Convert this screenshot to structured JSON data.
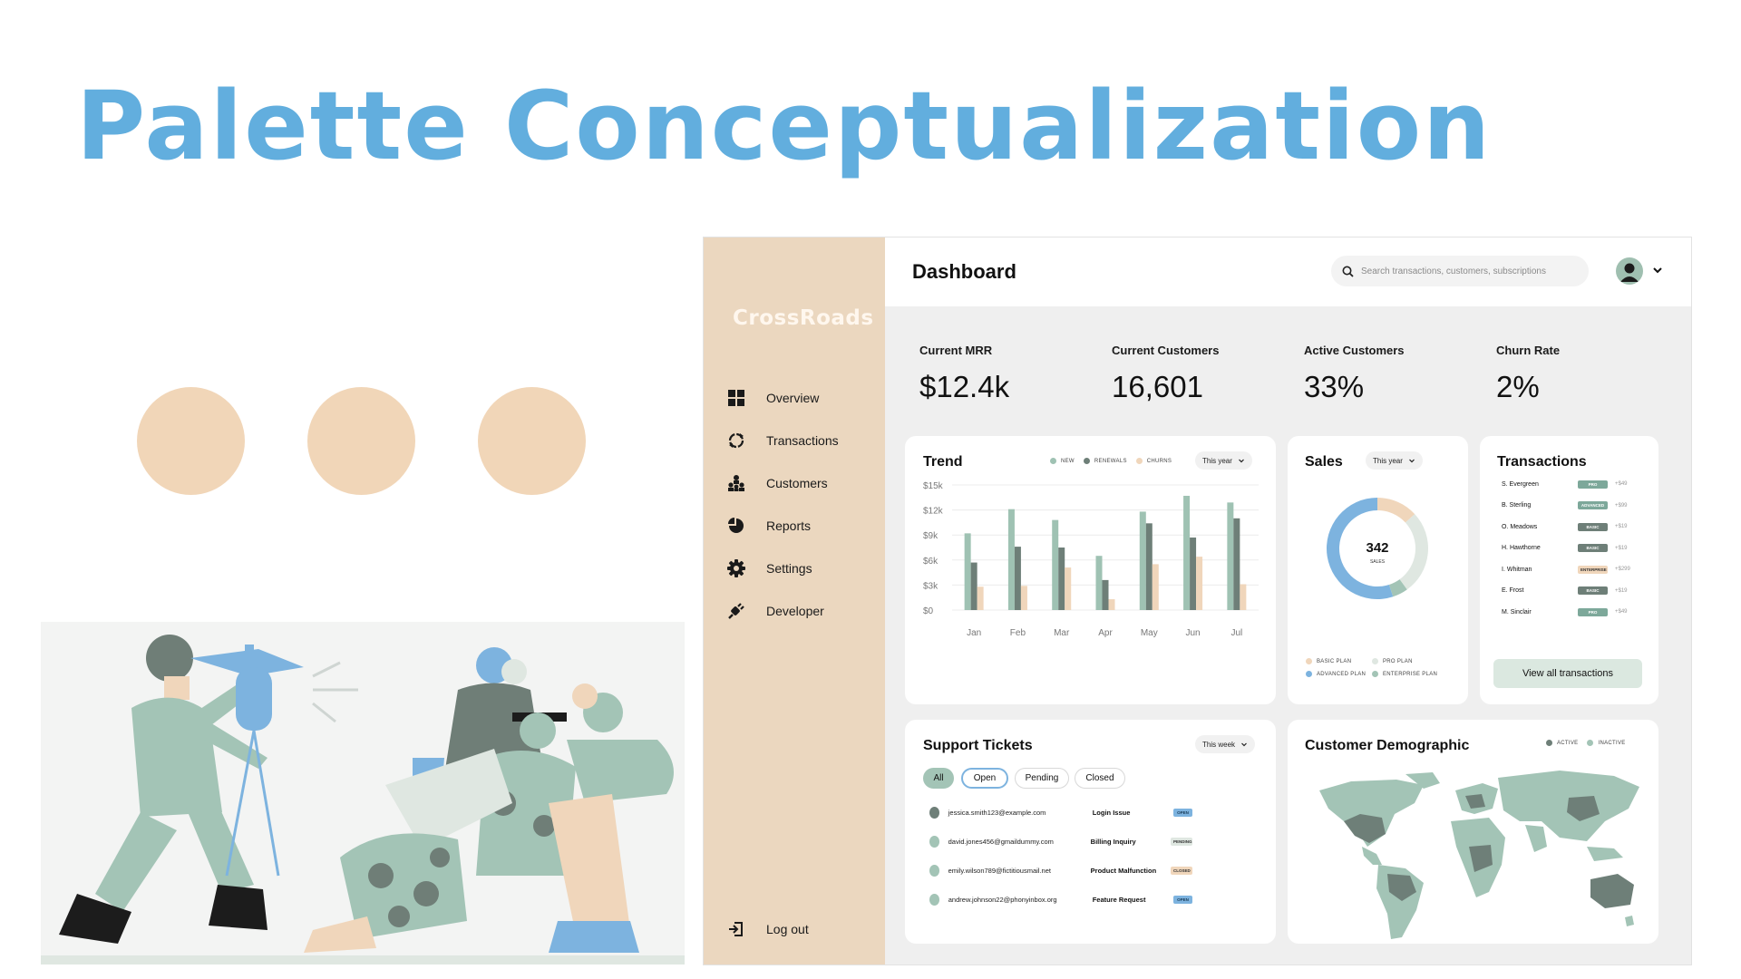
{
  "slide": {
    "title": "Palette Conceptualization",
    "palette_circle_color": "#f1d6b8"
  },
  "sidebar": {
    "logo": "CrossRoads",
    "items": [
      {
        "label": "Overview",
        "icon": "grid-icon"
      },
      {
        "label": "Transactions",
        "icon": "refresh-cycle-icon"
      },
      {
        "label": "Customers",
        "icon": "people-hierarchy-icon"
      },
      {
        "label": "Reports",
        "icon": "pie-icon"
      },
      {
        "label": "Settings",
        "icon": "gear-icon"
      },
      {
        "label": "Developer",
        "icon": "plug-icon"
      }
    ],
    "logout": {
      "label": "Log out",
      "icon": "logout-icon"
    }
  },
  "header": {
    "title": "Dashboard",
    "search_placeholder": "Search transactions, customers, subscriptions"
  },
  "stats": [
    {
      "label": "Current MRR",
      "value": "$12.4k",
      "color": "#e0e8e2"
    },
    {
      "label": "Current Customers",
      "value": "16,601",
      "color": "#7db3df"
    },
    {
      "label": "Active Customers",
      "value": "33%",
      "color": "#a1c3b5"
    },
    {
      "label": "Churn Rate",
      "value": "2%",
      "color": "#798881"
    }
  ],
  "trend": {
    "title": "Trend",
    "period": "This year",
    "legend": [
      "NEW",
      "RENEWALS",
      "CHURNS"
    ]
  },
  "sales": {
    "title": "Sales",
    "period": "This year",
    "center_value": "342",
    "center_label": "SALES",
    "legend": [
      "BASIC PLAN",
      "PRO PLAN",
      "ADVANCED PLAN",
      "ENTERPRISE PLAN"
    ]
  },
  "transactions": {
    "title": "Transactions",
    "rows": [
      {
        "name": "S. Evergreen",
        "plan": "PRO",
        "amount": "+$49"
      },
      {
        "name": "B. Sterling",
        "plan": "ADVANCED",
        "amount": "+$99"
      },
      {
        "name": "O. Meadows",
        "plan": "BASIC",
        "amount": "+$19"
      },
      {
        "name": "H. Hawthorne",
        "plan": "BASIC",
        "amount": "+$19"
      },
      {
        "name": "I. Whitman",
        "plan": "ENTERPRISE",
        "amount": "+$299"
      },
      {
        "name": "E. Frost",
        "plan": "BASIC",
        "amount": "+$19"
      },
      {
        "name": "M. Sinclair",
        "plan": "PRO",
        "amount": "+$49"
      }
    ],
    "view_all": "View all transactions"
  },
  "tickets": {
    "title": "Support Tickets",
    "period": "This week",
    "filters": [
      "All",
      "Open",
      "Pending",
      "Closed"
    ],
    "rows": [
      {
        "email": "jessica.smith123@example.com",
        "issue": "Login Issue",
        "status": "OPEN"
      },
      {
        "email": "david.jones456@gmaildummy.com",
        "issue": "Billing Inquiry",
        "status": "PENDING"
      },
      {
        "email": "emily.wilson789@fictitiousmail.net",
        "issue": "Product Malfunction",
        "status": "CLOSED"
      },
      {
        "email": "andrew.johnson22@phonyinbox.org",
        "issue": "Feature Request",
        "status": "OPEN"
      }
    ]
  },
  "demographic": {
    "title": "Customer Demographic",
    "legend": [
      "ACTIVE",
      "INACTIVE"
    ]
  },
  "chart_data": [
    {
      "type": "bar",
      "title": "Trend",
      "categories": [
        "Jan",
        "Feb",
        "Mar",
        "Apr",
        "May",
        "Jun",
        "Jul"
      ],
      "y_ticks": [
        "$0",
        "$3k",
        "$6k",
        "$9k",
        "$12k",
        "$15k"
      ],
      "ylim": [
        0,
        15000
      ],
      "series": [
        {
          "name": "NEW",
          "color": "#9fc2b3",
          "values": [
            9200,
            12100,
            10800,
            6500,
            11800,
            13700,
            12900
          ]
        },
        {
          "name": "RENEWALS",
          "color": "#6e7f78",
          "values": [
            5700,
            7600,
            7500,
            3600,
            10400,
            8700,
            11000
          ]
        },
        {
          "name": "CHURNS",
          "color": "#f0d6bb",
          "values": [
            2800,
            2900,
            5100,
            1300,
            5500,
            6400,
            3100
          ]
        }
      ]
    },
    {
      "type": "pie",
      "title": "Sales",
      "total": 342,
      "slices": [
        {
          "name": "BASIC PLAN",
          "color": "#f0d6bb",
          "value": 45
        },
        {
          "name": "PRO PLAN",
          "color": "#dfe7e1",
          "value": 92
        },
        {
          "name": "ENTERPRISE PLAN",
          "color": "#a3c4b6",
          "value": 17
        },
        {
          "name": "ADVANCED PLAN",
          "color": "#7db3df",
          "value": 188
        }
      ]
    }
  ]
}
